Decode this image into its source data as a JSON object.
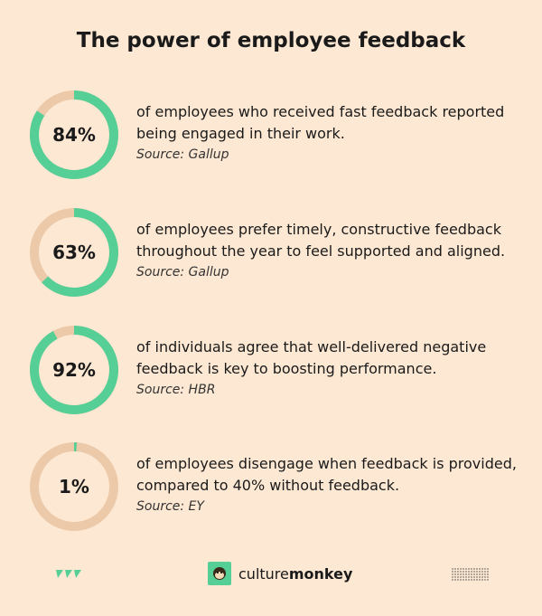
{
  "title": "The power of employee feedback",
  "colors": {
    "background": "#fde8d3",
    "accent": "#55cf95",
    "track": "#ecc9a8"
  },
  "chart_data": {
    "type": "donut",
    "items": [
      {
        "value": 84,
        "label": "84%",
        "text": "of employees who received fast feedback reported being engaged in their work.",
        "source": "Source: Gallup"
      },
      {
        "value": 63,
        "label": "63%",
        "text": "of employees prefer timely, constructive feedback throughout the year to feel supported and aligned.",
        "source": "Source: Gallup"
      },
      {
        "value": 92,
        "label": "92%",
        "text": "of individuals agree that well-delivered negative feedback is key to boosting performance.",
        "source": "Source: HBR"
      },
      {
        "value": 1,
        "label": "1%",
        "text": "of employees disengage when feedback is provided, compared to 40% without feedback.",
        "source": "Source: EY"
      }
    ]
  },
  "footer": {
    "brand_light": "culture",
    "brand_bold": "monkey",
    "logo_icon": "monkey-face-icon"
  }
}
